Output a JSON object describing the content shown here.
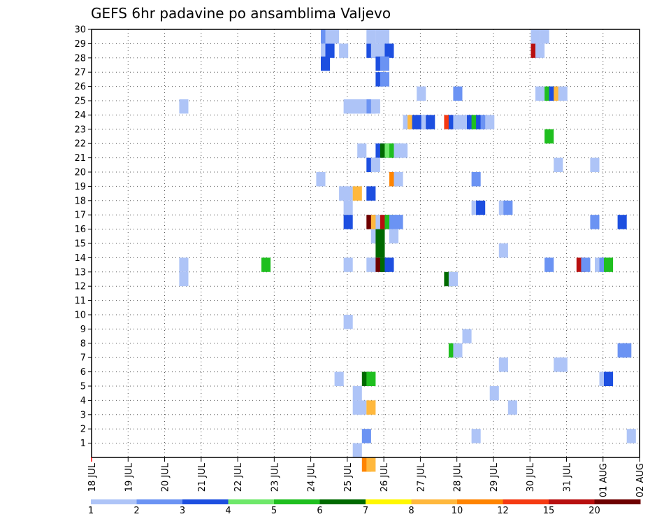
{
  "chart_data": {
    "type": "heatmap",
    "title": "GEFS 6hr padavine po ansamblima Valjevo",
    "xlabel": "",
    "ylabel": "",
    "y_members": [
      1,
      2,
      3,
      4,
      5,
      6,
      7,
      8,
      9,
      10,
      11,
      12,
      13,
      14,
      15,
      16,
      17,
      18,
      19,
      20,
      21,
      22,
      23,
      24,
      25,
      26,
      27,
      28,
      29,
      30
    ],
    "y_tick_labels": [
      "1",
      "2",
      "3",
      "4",
      "5",
      "6",
      "7",
      "8",
      "9",
      "10",
      "11",
      "12",
      "13",
      "14",
      "15",
      "16",
      "17",
      "18",
      "19",
      "20",
      "21",
      "22",
      "23",
      "24",
      "25",
      "26",
      "27",
      "28",
      "29",
      "30"
    ],
    "x_tick_labels": [
      "18 JUL",
      "19 JUL",
      "20 JUL",
      "21 JUL",
      "22 JUL",
      "23 JUL",
      "24 JUL",
      "25 JUL",
      "26 JUL",
      "27 JUL",
      "28 JUL",
      "29 JUL",
      "30 JUL",
      "31 JUL",
      "01 AUG",
      "02 AUG"
    ],
    "x_units": "6-hour steps from 18 JUL 00Z",
    "x_range": [
      0,
      60
    ],
    "grid": true,
    "color_levels": [
      1,
      2,
      3,
      4,
      5,
      6,
      7,
      8,
      10,
      12,
      15,
      20
    ],
    "colorbar_labels": [
      "1",
      "2",
      "3",
      "4",
      "5",
      "6",
      "7",
      "8",
      "10",
      "12",
      "15",
      "20"
    ],
    "colors": [
      "#aec4f7",
      "#6b93f3",
      "#1d4fe0",
      "#6ee86a",
      "#1fbf1f",
      "#006a00",
      "#fff700",
      "#ffb83d",
      "#ff8400",
      "#f53a12",
      "#b80f0f",
      "#6e0000"
    ],
    "cells": [
      [
        1,
        28.5,
        25.6
      ],
      [
        2,
        29.5,
        25.6
      ],
      [
        3,
        27.6,
        25.6
      ],
      [
        3,
        28.5,
        26.1
      ],
      [
        1,
        29.5,
        26.1
      ],
      [
        1,
        29.5,
        26.6
      ],
      [
        1,
        28.5,
        27.6
      ],
      [
        3,
        28.5,
        30.6
      ],
      [
        1,
        29.5,
        30.6
      ],
      [
        1,
        28.5,
        31.1
      ],
      [
        1,
        28.5,
        31.6
      ],
      [
        1,
        29.5,
        31.6
      ],
      [
        1,
        29.5,
        32.1
      ],
      [
        11,
        28.5,
        48.6
      ],
      [
        1,
        29.5,
        48.6
      ],
      [
        1,
        28.5,
        49.1
      ],
      [
        1,
        29.5,
        49.6
      ],
      [
        3,
        28.5,
        32.6
      ],
      [
        3,
        26.5,
        31.6
      ],
      [
        3,
        27.6,
        31.6
      ],
      [
        2,
        26.5,
        32.1
      ],
      [
        2,
        27.6,
        32.1
      ],
      [
        1,
        25.5,
        36.1
      ],
      [
        2,
        25.5,
        40.1
      ],
      [
        1,
        25.5,
        49.1
      ],
      [
        5,
        25.5,
        50.1
      ],
      [
        3,
        25.5,
        50.6
      ],
      [
        8,
        25.5,
        51.1
      ],
      [
        1,
        25.5,
        51.6
      ],
      [
        1,
        24.6,
        10.1
      ],
      [
        1,
        24.6,
        28.1
      ],
      [
        1,
        24.6,
        28.6
      ],
      [
        1,
        24.6,
        29.1
      ],
      [
        1,
        24.6,
        29.6
      ],
      [
        2,
        24.6,
        30.6
      ],
      [
        1,
        24.6,
        31.1
      ],
      [
        1,
        23.5,
        34.6
      ],
      [
        8,
        23.5,
        35.1
      ],
      [
        3,
        23.5,
        35.6
      ],
      [
        3,
        23.5,
        36.1
      ],
      [
        1,
        23.5,
        36.6
      ],
      [
        3,
        23.5,
        37.1
      ],
      [
        10,
        23.5,
        39.1
      ],
      [
        3,
        23.5,
        39.6
      ],
      [
        1,
        23.5,
        40.1
      ],
      [
        1,
        23.5,
        40.6
      ],
      [
        1,
        23.5,
        41.1
      ],
      [
        3,
        23.5,
        41.6
      ],
      [
        5,
        23.5,
        42.1
      ],
      [
        3,
        23.5,
        42.6
      ],
      [
        2,
        23.5,
        43.1
      ],
      [
        1,
        23.5,
        43.6
      ],
      [
        5,
        22.5,
        50.1
      ],
      [
        1,
        21.5,
        29.6
      ],
      [
        3,
        21.5,
        31.6
      ],
      [
        6,
        21.5,
        32.1
      ],
      [
        4,
        21.5,
        32.6
      ],
      [
        5,
        21.5,
        33.1
      ],
      [
        1,
        21.5,
        33.6
      ],
      [
        1,
        21.5,
        34.1
      ],
      [
        3,
        20.5,
        30.6
      ],
      [
        1,
        20.5,
        31.1
      ],
      [
        1,
        20.5,
        51.1
      ],
      [
        1,
        20.5,
        55.1
      ],
      [
        1,
        19.5,
        25.1
      ],
      [
        9,
        19.5,
        33.1
      ],
      [
        1,
        19.5,
        33.6
      ],
      [
        2,
        19.5,
        42.1
      ],
      [
        1,
        18.5,
        27.6
      ],
      [
        1,
        18.5,
        28.1
      ],
      [
        8,
        18.5,
        29.1
      ],
      [
        3,
        18.5,
        30.6
      ],
      [
        1,
        17.5,
        28.1
      ],
      [
        1,
        17.5,
        42.1
      ],
      [
        3,
        17.5,
        42.6
      ],
      [
        1,
        17.5,
        45.1
      ],
      [
        2,
        17.5,
        45.6
      ],
      [
        3,
        16.5,
        28.1
      ],
      [
        12,
        16.5,
        30.6
      ],
      [
        8,
        16.5,
        31.1
      ],
      [
        1,
        16.5,
        31.6
      ],
      [
        11,
        16.5,
        32.1
      ],
      [
        5,
        16.5,
        32.6
      ],
      [
        2,
        16.5,
        33.1
      ],
      [
        2,
        16.5,
        33.6
      ],
      [
        2,
        16.5,
        55.1
      ],
      [
        3,
        16.5,
        58.1
      ],
      [
        1,
        15.5,
        31.1
      ],
      [
        6,
        15.5,
        31.6
      ],
      [
        1,
        15.5,
        33.1
      ],
      [
        6,
        14.5,
        31.6
      ],
      [
        1,
        14.5,
        45.1
      ],
      [
        1,
        13.5,
        10.1
      ],
      [
        5,
        13.5,
        19.1
      ],
      [
        1,
        13.5,
        28.1
      ],
      [
        1,
        13.5,
        30.6
      ],
      [
        1,
        13.5,
        31.1
      ],
      [
        12,
        13.5,
        31.6
      ],
      [
        6,
        13.5,
        32.1
      ],
      [
        3,
        13.5,
        32.6
      ],
      [
        2,
        13.5,
        50.1
      ],
      [
        11,
        13.5,
        53.6
      ],
      [
        2,
        13.5,
        54.1
      ],
      [
        1,
        13.5,
        55.6
      ],
      [
        2,
        13.5,
        56.1
      ],
      [
        5,
        13.5,
        56.6
      ],
      [
        1,
        12.5,
        10.1
      ],
      [
        6,
        12.5,
        39.1
      ],
      [
        1,
        12.5,
        39.6
      ],
      [
        1,
        9.5,
        28.1
      ],
      [
        1,
        8.5,
        41.1
      ],
      [
        5,
        7.5,
        39.6
      ],
      [
        1,
        7.5,
        40.1
      ],
      [
        2,
        7.5,
        58.1
      ],
      [
        2,
        7.5,
        58.6
      ],
      [
        1,
        6.5,
        45.1
      ],
      [
        1,
        6.5,
        51.1
      ],
      [
        1,
        6.5,
        51.6
      ],
      [
        1,
        5.5,
        27.1
      ],
      [
        6,
        5.5,
        30.1
      ],
      [
        5,
        5.5,
        30.6
      ],
      [
        1,
        5.5,
        56.1
      ],
      [
        3,
        5.5,
        56.6
      ],
      [
        1,
        4.5,
        29.1
      ],
      [
        1,
        4.5,
        44.1
      ],
      [
        1,
        3.5,
        29.1
      ],
      [
        1,
        3.5,
        29.6
      ],
      [
        8,
        3.5,
        30.6
      ],
      [
        1,
        3.5,
        46.1
      ],
      [
        2,
        1.5,
        30.1
      ],
      [
        1,
        1.5,
        42.1
      ],
      [
        1,
        1.5,
        59.1
      ],
      [
        1,
        0.5,
        29.1
      ],
      [
        9,
        -0.5,
        30.1
      ],
      [
        8,
        -0.5,
        30.6
      ]
    ]
  }
}
